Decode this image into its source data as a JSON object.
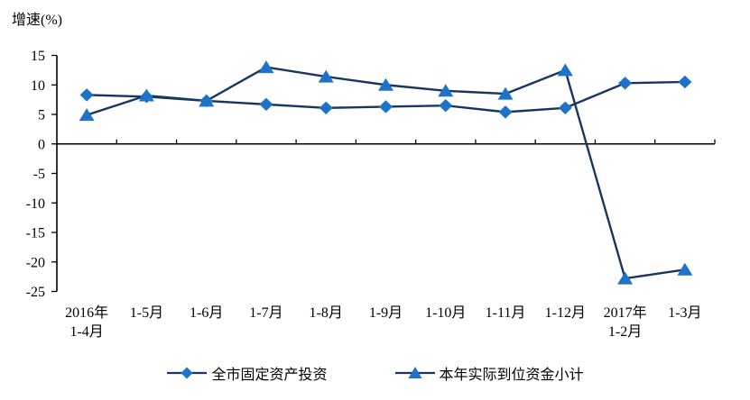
{
  "chart_data": {
    "type": "line",
    "title": "增速(%)",
    "categories": [
      "2016年\n1-4月",
      "1-5月",
      "1-6月",
      "1-7月",
      "1-8月",
      "1-9月",
      "1-10月",
      "1-11月",
      "1-12月",
      "2017年\n1-2月",
      "1-3月"
    ],
    "series": [
      {
        "name": "全市固定资产投资",
        "marker": "diamond",
        "values": [
          8.3,
          8.0,
          7.3,
          6.7,
          6.1,
          6.3,
          6.5,
          5.4,
          6.1,
          10.3,
          10.5
        ]
      },
      {
        "name": "本年实际到位资金小计",
        "marker": "triangle",
        "values": [
          4.9,
          8.2,
          7.3,
          13.0,
          11.4,
          10.0,
          9.0,
          8.5,
          12.5,
          -22.8,
          -21.3
        ]
      }
    ],
    "ylim": [
      -25,
      15
    ],
    "yticks": [
      15,
      10,
      5,
      0,
      -5,
      -10,
      -15,
      -20,
      -25
    ],
    "xlabel": "",
    "ylabel": "增速(%)",
    "grid": false,
    "legend_position": "bottom",
    "colors": {
      "line": "#17375E",
      "marker": "#1E73C8",
      "axis": "#000000",
      "text": "#000000"
    }
  }
}
